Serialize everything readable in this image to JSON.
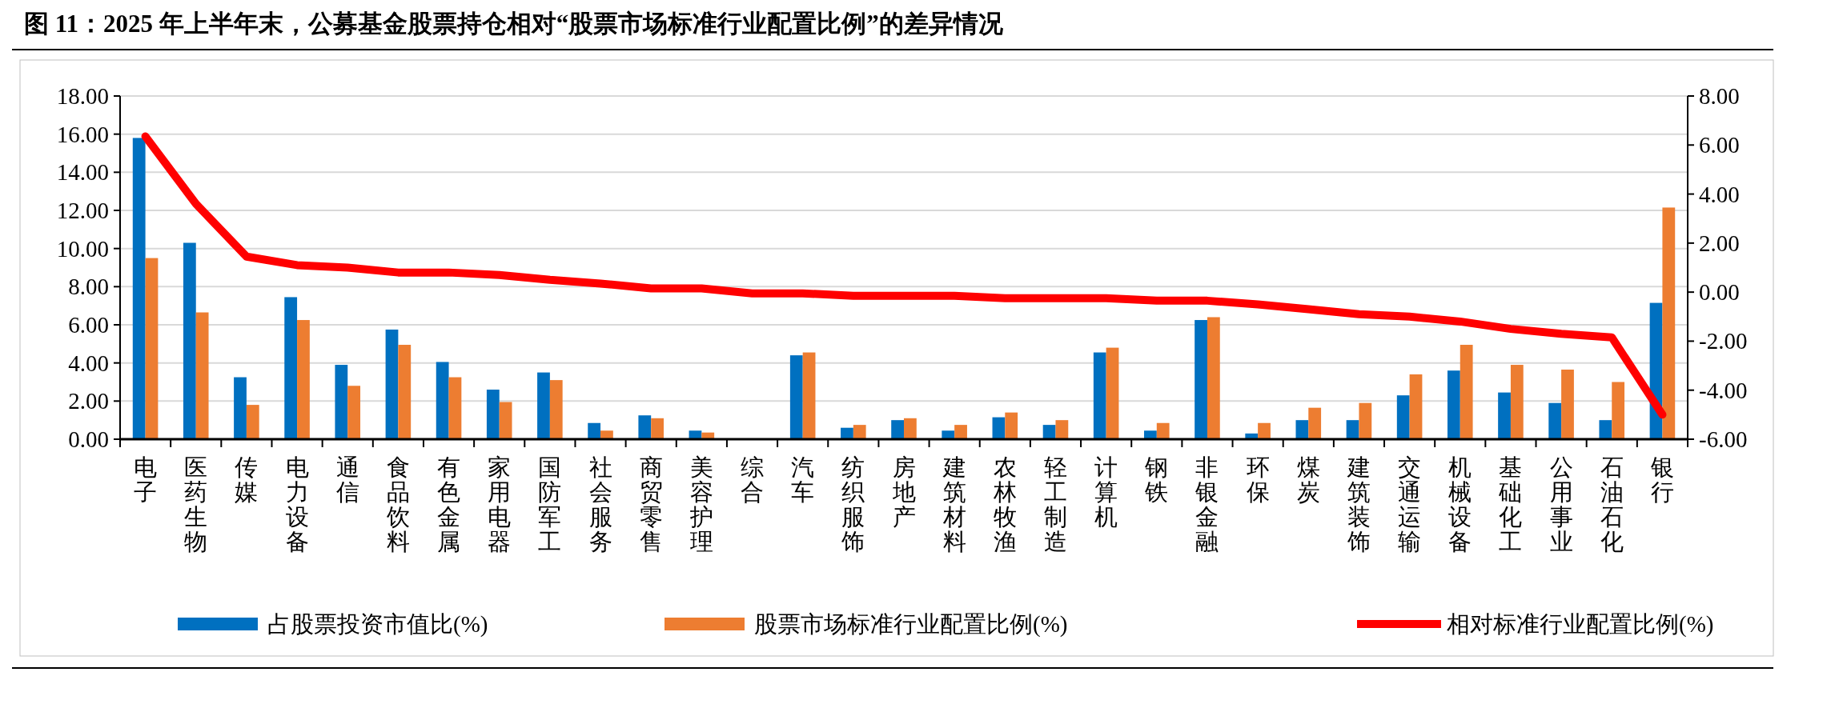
{
  "chart_data": {
    "type": "bar",
    "title": "图 11：2025 年上半年末，公募基金股票持仓相对“股票市场标准行业配置比例”的差异情况",
    "categories": [
      "电子",
      "医药生物",
      "传媒",
      "电力设备",
      "通信",
      "食品饮料",
      "有色金属",
      "家用电器",
      "国防军工",
      "社会服务",
      "商贸零售",
      "美容护理",
      "综合",
      "汽车",
      "纺织服饰",
      "房地产",
      "建筑材料",
      "农林牧渔",
      "轻工制造",
      "计算机",
      "钢铁",
      "非银金融",
      "环保",
      "煤炭",
      "建筑装饰",
      "交通运输",
      "机械设备",
      "基础化工",
      "公用事业",
      "石油石化",
      "银行"
    ],
    "series": [
      {
        "name": "占股票投资市值比(%)",
        "color": "#0070c0",
        "values": [
          15.8,
          10.3,
          3.25,
          7.45,
          3.9,
          5.75,
          4.05,
          2.6,
          3.5,
          0.85,
          1.25,
          0.45,
          null,
          4.4,
          0.6,
          1.0,
          0.45,
          1.15,
          0.75,
          4.55,
          0.45,
          6.25,
          0.3,
          1.0,
          1.0,
          2.3,
          3.6,
          2.45,
          1.9,
          1.0,
          7.15
        ]
      },
      {
        "name": "股票市场标准行业配置比例(%)",
        "color": "#ed7d31",
        "values": [
          9.5,
          6.65,
          1.8,
          6.25,
          2.8,
          4.95,
          3.25,
          1.95,
          3.1,
          0.45,
          1.1,
          0.35,
          null,
          4.55,
          0.75,
          1.1,
          0.75,
          1.4,
          1.0,
          4.8,
          0.85,
          6.4,
          0.85,
          1.65,
          1.9,
          3.4,
          4.95,
          3.9,
          3.65,
          3.0,
          12.15
        ]
      },
      {
        "name": "相对标准行业配置比例(%)",
        "type": "line",
        "axis": "y2",
        "color": "#ff0000",
        "values": [
          6.35,
          3.6,
          1.45,
          1.1,
          1.0,
          0.8,
          0.8,
          0.7,
          0.5,
          0.35,
          0.15,
          0.15,
          -0.05,
          -0.05,
          -0.15,
          -0.15,
          -0.15,
          -0.25,
          -0.25,
          -0.25,
          -0.35,
          -0.35,
          -0.5,
          -0.7,
          -0.9,
          -1.0,
          -1.2,
          -1.5,
          -1.7,
          -1.85,
          -5.0
        ]
      }
    ],
    "ylim": [
      0,
      18
    ],
    "yticks": [
      {
        "value": 0,
        "label": "0.00"
      },
      {
        "value": 2,
        "label": "2.00"
      },
      {
        "value": 4,
        "label": "4.00"
      },
      {
        "value": 6,
        "label": "6.00"
      },
      {
        "value": 8,
        "label": "8.00"
      },
      {
        "value": 10,
        "label": "10.00"
      },
      {
        "value": 12,
        "label": "12.00"
      },
      {
        "value": 14,
        "label": "14.00"
      },
      {
        "value": 16,
        "label": "16.00"
      },
      {
        "value": 18,
        "label": "18.00"
      }
    ],
    "y2lim": [
      -6,
      8
    ],
    "y2ticks": [
      {
        "value": -6,
        "label": "-6.00"
      },
      {
        "value": -4,
        "label": "-4.00"
      },
      {
        "value": -2,
        "label": "-2.00"
      },
      {
        "value": 0,
        "label": "0.00"
      },
      {
        "value": 2,
        "label": "2.00"
      },
      {
        "value": 4,
        "label": "4.00"
      },
      {
        "value": 6,
        "label": "6.00"
      },
      {
        "value": 8,
        "label": "8.00"
      }
    ],
    "grid": "y",
    "legend": "bottom"
  }
}
